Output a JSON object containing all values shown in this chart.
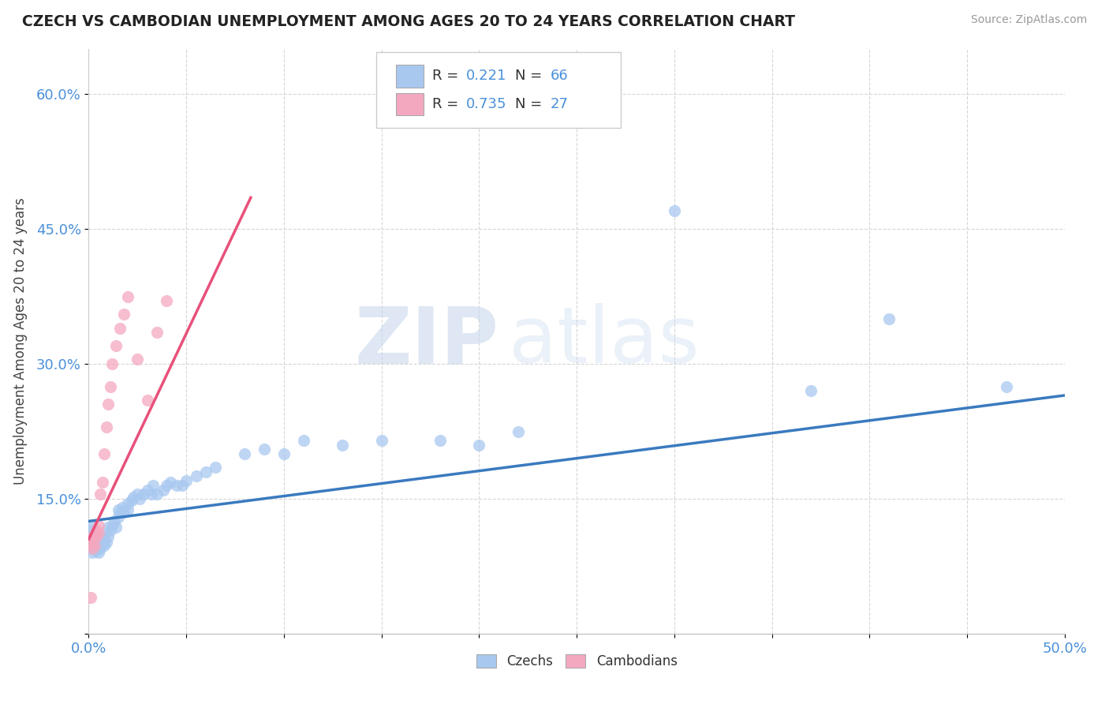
{
  "title": "CZECH VS CAMBODIAN UNEMPLOYMENT AMONG AGES 20 TO 24 YEARS CORRELATION CHART",
  "source": "Source: ZipAtlas.com",
  "ylabel": "Unemployment Among Ages 20 to 24 years",
  "xlim": [
    0.0,
    0.5
  ],
  "ylim": [
    0.0,
    0.65
  ],
  "xtick_positions": [
    0.0,
    0.05,
    0.1,
    0.15,
    0.2,
    0.25,
    0.3,
    0.35,
    0.4,
    0.45,
    0.5
  ],
  "xticklabels": [
    "0.0%",
    "",
    "",
    "",
    "",
    "",
    "",
    "",
    "",
    "",
    "50.0%"
  ],
  "ytick_positions": [
    0.0,
    0.15,
    0.3,
    0.45,
    0.6
  ],
  "yticklabels": [
    "",
    "15.0%",
    "30.0%",
    "45.0%",
    "60.0%"
  ],
  "czech_color": "#a8c8f0",
  "cambodian_color": "#f4a8c0",
  "czech_line_color": "#3a7abf",
  "cambodian_line_color": "#e8507a",
  "watermark_zip": "ZIP",
  "watermark_atlas": "atlas",
  "legend_r_czech": "0.221",
  "legend_n_czech": "66",
  "legend_r_cambodian": "0.735",
  "legend_n_cambodian": "27",
  "background_color": "#ffffff",
  "grid_color": "#cccccc",
  "czech_trend_x": [
    0.0,
    0.5
  ],
  "czech_trend_y": [
    0.125,
    0.265
  ],
  "cambodian_trend_x": [
    0.0,
    0.083
  ],
  "cambodian_trend_y": [
    0.105,
    0.485
  ],
  "czech_x": [
    0.001,
    0.001,
    0.001,
    0.002,
    0.002,
    0.002,
    0.002,
    0.003,
    0.003,
    0.003,
    0.004,
    0.004,
    0.005,
    0.005,
    0.006,
    0.006,
    0.007,
    0.007,
    0.008,
    0.008,
    0.009,
    0.01,
    0.01,
    0.011,
    0.012,
    0.013,
    0.014,
    0.015,
    0.015,
    0.016,
    0.017,
    0.018,
    0.02,
    0.02,
    0.022,
    0.023,
    0.025,
    0.026,
    0.028,
    0.03,
    0.032,
    0.033,
    0.035,
    0.038,
    0.04,
    0.042,
    0.045,
    0.048,
    0.05,
    0.055,
    0.06,
    0.065,
    0.08,
    0.09,
    0.1,
    0.11,
    0.13,
    0.15,
    0.18,
    0.2,
    0.22,
    0.25,
    0.3,
    0.37,
    0.41,
    0.47
  ],
  "czech_y": [
    0.12,
    0.115,
    0.105,
    0.11,
    0.1,
    0.095,
    0.09,
    0.108,
    0.1,
    0.095,
    0.1,
    0.092,
    0.098,
    0.09,
    0.102,
    0.095,
    0.108,
    0.1,
    0.105,
    0.098,
    0.102,
    0.118,
    0.108,
    0.115,
    0.12,
    0.125,
    0.118,
    0.13,
    0.138,
    0.135,
    0.14,
    0.135,
    0.145,
    0.138,
    0.148,
    0.152,
    0.155,
    0.15,
    0.155,
    0.16,
    0.155,
    0.165,
    0.155,
    0.16,
    0.165,
    0.168,
    0.165,
    0.165,
    0.17,
    0.175,
    0.18,
    0.185,
    0.2,
    0.205,
    0.2,
    0.215,
    0.21,
    0.215,
    0.215,
    0.21,
    0.225,
    0.62,
    0.47,
    0.27,
    0.35,
    0.275
  ],
  "cambodian_x": [
    0.001,
    0.001,
    0.002,
    0.002,
    0.002,
    0.003,
    0.003,
    0.004,
    0.004,
    0.005,
    0.005,
    0.006,
    0.007,
    0.008,
    0.009,
    0.01,
    0.011,
    0.012,
    0.014,
    0.016,
    0.018,
    0.02,
    0.025,
    0.03,
    0.035,
    0.04,
    0.001
  ],
  "cambodian_y": [
    0.105,
    0.098,
    0.102,
    0.095,
    0.108,
    0.11,
    0.098,
    0.115,
    0.108,
    0.12,
    0.112,
    0.155,
    0.168,
    0.2,
    0.23,
    0.255,
    0.275,
    0.3,
    0.32,
    0.34,
    0.355,
    0.375,
    0.305,
    0.26,
    0.335,
    0.37,
    0.04
  ]
}
